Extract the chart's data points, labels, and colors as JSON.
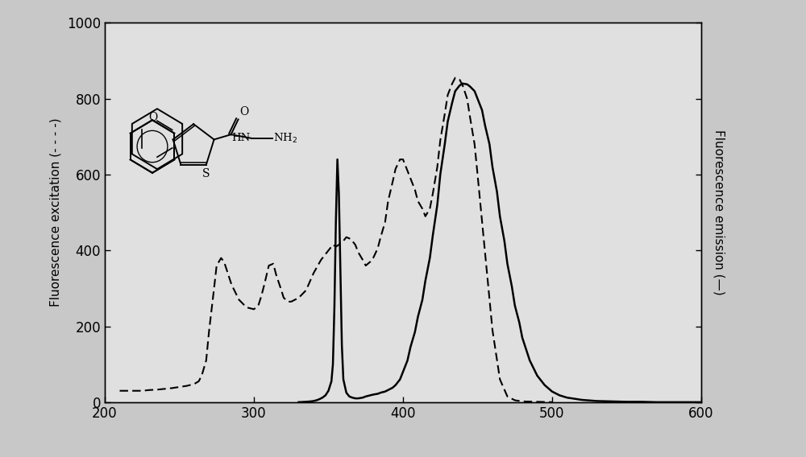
{
  "xlim": [
    200,
    600
  ],
  "ylim": [
    0,
    1000
  ],
  "xticks": [
    200,
    300,
    400,
    500,
    600
  ],
  "yticks": [
    0,
    200,
    400,
    600,
    800,
    1000
  ],
  "ylabel_left": "Fluorescence excitation (- - - -)",
  "ylabel_right": "Fluorescence emission (—)",
  "background_color": "#c8c8c8",
  "plot_bg_color": "#e0e0e0",
  "excitation_x": [
    210,
    215,
    220,
    225,
    230,
    235,
    240,
    245,
    250,
    255,
    260,
    263,
    265,
    268,
    270,
    273,
    275,
    278,
    280,
    285,
    290,
    295,
    300,
    303,
    305,
    307,
    310,
    313,
    315,
    318,
    320,
    323,
    325,
    330,
    335,
    340,
    345,
    350,
    353,
    355,
    357,
    360,
    362,
    365,
    368,
    370,
    373,
    375,
    378,
    380,
    383,
    385,
    388,
    390,
    393,
    395,
    398,
    400,
    403,
    405,
    408,
    410,
    413,
    415,
    418,
    420,
    423,
    425,
    428,
    430,
    433,
    435,
    438,
    440,
    443,
    445,
    448,
    450,
    455,
    460,
    465,
    470,
    475,
    480,
    490,
    500
  ],
  "excitation_y": [
    30,
    30,
    30,
    30,
    32,
    33,
    35,
    37,
    40,
    43,
    48,
    55,
    70,
    110,
    190,
    290,
    360,
    380,
    370,
    310,
    270,
    250,
    245,
    255,
    280,
    310,
    360,
    365,
    335,
    300,
    275,
    265,
    265,
    275,
    295,
    340,
    375,
    400,
    415,
    410,
    415,
    425,
    435,
    430,
    415,
    395,
    375,
    360,
    370,
    380,
    405,
    435,
    475,
    530,
    580,
    615,
    640,
    640,
    610,
    590,
    560,
    530,
    510,
    490,
    510,
    550,
    620,
    690,
    760,
    810,
    840,
    855,
    850,
    835,
    800,
    750,
    680,
    600,
    395,
    190,
    60,
    15,
    5,
    2,
    1,
    0
  ],
  "emission_x": [
    330,
    335,
    338,
    340,
    342,
    344,
    346,
    348,
    350,
    352,
    353,
    354,
    355,
    356,
    357,
    358,
    359,
    360,
    362,
    364,
    366,
    368,
    370,
    373,
    375,
    378,
    380,
    383,
    385,
    388,
    390,
    393,
    395,
    398,
    400,
    403,
    405,
    408,
    410,
    413,
    415,
    418,
    420,
    423,
    425,
    428,
    430,
    433,
    435,
    438,
    440,
    443,
    445,
    448,
    450,
    453,
    455,
    458,
    460,
    463,
    465,
    468,
    470,
    473,
    475,
    478,
    480,
    485,
    490,
    495,
    500,
    505,
    510,
    520,
    530,
    540,
    550,
    560,
    570,
    580,
    590,
    600
  ],
  "emission_y": [
    0,
    1,
    2,
    3,
    5,
    8,
    12,
    18,
    30,
    55,
    100,
    250,
    480,
    640,
    550,
    350,
    150,
    60,
    25,
    15,
    12,
    10,
    10,
    12,
    15,
    18,
    20,
    22,
    25,
    28,
    32,
    38,
    45,
    60,
    80,
    110,
    145,
    185,
    225,
    270,
    320,
    380,
    440,
    520,
    600,
    680,
    740,
    790,
    820,
    835,
    840,
    838,
    832,
    820,
    800,
    770,
    730,
    680,
    620,
    555,
    490,
    425,
    365,
    305,
    255,
    210,
    170,
    110,
    70,
    45,
    28,
    18,
    12,
    6,
    3,
    2,
    1,
    1,
    0,
    0,
    0,
    0
  ]
}
